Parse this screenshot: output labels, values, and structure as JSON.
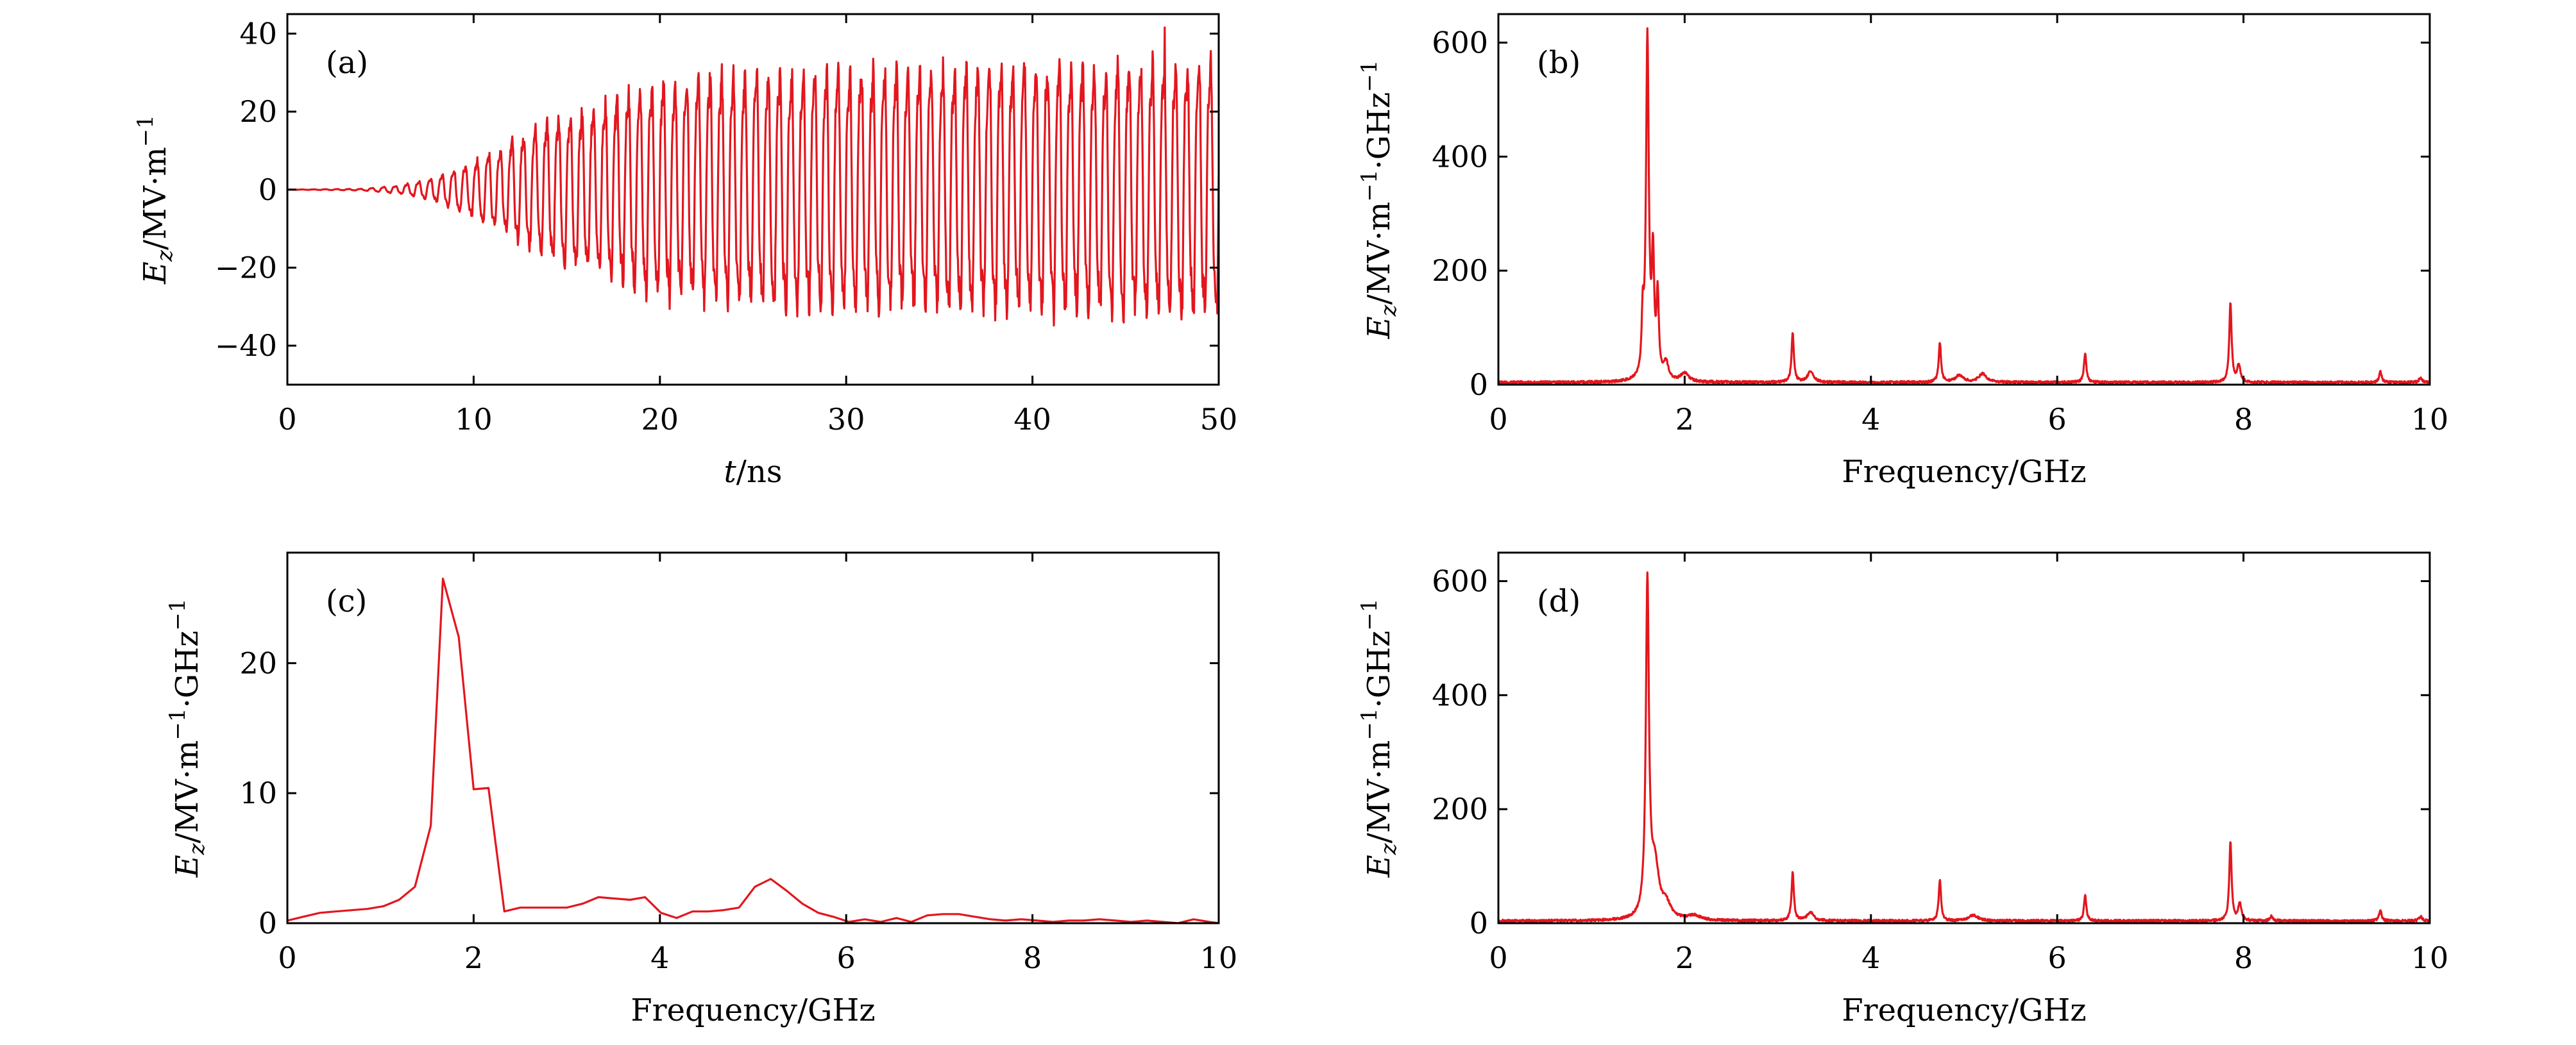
{
  "chart_data": [
    {
      "id": "a",
      "type": "line",
      "panel_label": "(a)",
      "xlabel_var": "t",
      "xlabel_unit": "/ns",
      "ylabel_var": "E",
      "ylabel_sub": "z",
      "ylabel_unit": "/MV·m",
      "ylabel_exp": "−1",
      "xlim": [
        0,
        50
      ],
      "ylim": [
        -50,
        45
      ],
      "xticks": [
        0,
        10,
        20,
        30,
        40,
        50
      ],
      "xtick_labels": [
        "0",
        "10",
        "20",
        "30",
        "40",
        "50"
      ],
      "yticks": [
        -40,
        -20,
        0,
        20,
        40
      ],
      "ytick_labels": [
        "−40",
        "−20",
        "0",
        "20",
        "40"
      ],
      "grid": false,
      "color": "#e3161e",
      "signal": {
        "description_of_envelope": "oscillation at ~1.6 GHz; zero until ~4 ns, grows to ~±30 by ~20 ns, saturates around ±30 with spikes up to ±40",
        "frequency_ghz": 1.6,
        "start_ns": 4,
        "envelope_points": [
          [
            0,
            0
          ],
          [
            4,
            0.2
          ],
          [
            6,
            1
          ],
          [
            8,
            3
          ],
          [
            10,
            7
          ],
          [
            12,
            12
          ],
          [
            14,
            17
          ],
          [
            16,
            20
          ],
          [
            18,
            24
          ],
          [
            20,
            27
          ],
          [
            24,
            29
          ],
          [
            30,
            30
          ],
          [
            40,
            31
          ],
          [
            50,
            32
          ]
        ],
        "sample_step_ns": 0.025
      }
    },
    {
      "id": "b",
      "type": "line",
      "panel_label": "(b)",
      "xlabel": "Frequency/GHz",
      "ylabel_var": "E",
      "ylabel_sub": "z",
      "ylabel_unit": "/MV·m",
      "ylabel_exp": "−1",
      "ylabel_tail": "·GHz",
      "ylabel_tail_exp": "−1",
      "xlim": [
        0,
        10
      ],
      "ylim": [
        0,
        650
      ],
      "xticks": [
        0,
        2,
        4,
        6,
        8,
        10
      ],
      "xtick_labels": [
        "0",
        "2",
        "4",
        "6",
        "8",
        "10"
      ],
      "yticks": [
        0,
        200,
        400,
        600
      ],
      "ytick_labels": [
        "0",
        "200",
        "400",
        "600"
      ],
      "grid": false,
      "color": "#e3161e",
      "peaks": [
        {
          "f": 1.55,
          "a": 95,
          "w": 0.012
        },
        {
          "f": 1.6,
          "a": 600,
          "w": 0.018
        },
        {
          "f": 1.66,
          "a": 200,
          "w": 0.015
        },
        {
          "f": 1.71,
          "a": 140,
          "w": 0.015
        },
        {
          "f": 1.8,
          "a": 30,
          "w": 0.03
        },
        {
          "f": 2.0,
          "a": 15,
          "w": 0.05
        },
        {
          "f": 3.16,
          "a": 85,
          "w": 0.015
        },
        {
          "f": 3.35,
          "a": 18,
          "w": 0.04
        },
        {
          "f": 4.74,
          "a": 70,
          "w": 0.015
        },
        {
          "f": 4.95,
          "a": 12,
          "w": 0.05
        },
        {
          "f": 5.2,
          "a": 15,
          "w": 0.05
        },
        {
          "f": 6.3,
          "a": 50,
          "w": 0.015
        },
        {
          "f": 7.86,
          "a": 140,
          "w": 0.015
        },
        {
          "f": 7.95,
          "a": 30,
          "w": 0.02
        },
        {
          "f": 9.47,
          "a": 20,
          "w": 0.015
        },
        {
          "f": 9.9,
          "a": 8,
          "w": 0.02
        }
      ],
      "baseline": 2
    },
    {
      "id": "c",
      "type": "line",
      "panel_label": "(c)",
      "xlabel": "Frequency/GHz",
      "ylabel_var": "E",
      "ylabel_sub": "z",
      "ylabel_unit": "/MV·m",
      "ylabel_exp": "−1",
      "ylabel_tail": "·GHz",
      "ylabel_tail_exp": "−1",
      "xlim": [
        0,
        10
      ],
      "ylim": [
        0,
        28.5
      ],
      "xticks": [
        0,
        2,
        4,
        6,
        8,
        10
      ],
      "xtick_labels": [
        "0",
        "2",
        "4",
        "6",
        "8",
        "10"
      ],
      "yticks": [
        0,
        10,
        20
      ],
      "ytick_labels": [
        "0",
        "10",
        "20"
      ],
      "grid": false,
      "color": "#e3161e",
      "x": [
        0,
        0.17,
        0.35,
        0.52,
        0.69,
        0.86,
        1.03,
        1.2,
        1.37,
        1.54,
        1.67,
        1.84,
        2.0,
        2.16,
        2.33,
        2.5,
        2.67,
        2.84,
        3.0,
        3.17,
        3.34,
        3.51,
        3.68,
        3.84,
        4.01,
        4.18,
        4.35,
        4.52,
        4.68,
        4.85,
        5.02,
        5.19,
        5.36,
        5.53,
        5.7,
        5.86,
        6.03,
        6.2,
        6.37,
        6.54,
        6.7,
        6.87,
        7.04,
        7.21,
        7.38,
        7.55,
        7.71,
        7.88,
        8.05,
        8.22,
        8.39,
        8.55,
        8.72,
        8.89,
        9.06,
        9.23,
        9.4,
        9.56,
        9.73,
        9.9,
        10
      ],
      "values": [
        0.2,
        0.5,
        0.8,
        0.9,
        1.0,
        1.1,
        1.3,
        1.8,
        2.8,
        7.5,
        26.5,
        22.0,
        10.3,
        10.4,
        0.9,
        1.2,
        1.2,
        1.2,
        1.2,
        1.5,
        2.0,
        1.9,
        1.8,
        2.0,
        0.8,
        0.4,
        0.9,
        0.9,
        1.0,
        1.2,
        2.8,
        3.4,
        2.5,
        1.5,
        0.8,
        0.5,
        0.1,
        0.3,
        0.1,
        0.4,
        0.1,
        0.6,
        0.7,
        0.7,
        0.5,
        0.3,
        0.2,
        0.3,
        0.2,
        0.1,
        0.2,
        0.2,
        0.3,
        0.2,
        0.1,
        0.2,
        0.1,
        0.0,
        0.3,
        0.1,
        0.0
      ]
    },
    {
      "id": "d",
      "type": "line",
      "panel_label": "(d)",
      "xlabel": "Frequency/GHz",
      "ylabel_var": "E",
      "ylabel_sub": "z",
      "ylabel_unit": "/MV·m",
      "ylabel_exp": "−1",
      "ylabel_tail": "·GHz",
      "ylabel_tail_exp": "−1",
      "xlim": [
        0,
        10
      ],
      "ylim": [
        0,
        650
      ],
      "xticks": [
        0,
        2,
        4,
        6,
        8,
        10
      ],
      "xtick_labels": [
        "0",
        "2",
        "4",
        "6",
        "8",
        "10"
      ],
      "yticks": [
        0,
        200,
        400,
        600
      ],
      "ytick_labels": [
        "0",
        "200",
        "400",
        "600"
      ],
      "grid": false,
      "color": "#e3161e",
      "peaks": [
        {
          "f": 1.6,
          "a": 585,
          "w": 0.02
        },
        {
          "f": 1.68,
          "a": 90,
          "w": 0.05
        },
        {
          "f": 1.8,
          "a": 25,
          "w": 0.06
        },
        {
          "f": 2.1,
          "a": 8,
          "w": 0.08
        },
        {
          "f": 3.16,
          "a": 85,
          "w": 0.015
        },
        {
          "f": 3.35,
          "a": 15,
          "w": 0.04
        },
        {
          "f": 4.74,
          "a": 72,
          "w": 0.015
        },
        {
          "f": 5.1,
          "a": 10,
          "w": 0.06
        },
        {
          "f": 6.3,
          "a": 45,
          "w": 0.015
        },
        {
          "f": 7.86,
          "a": 138,
          "w": 0.015
        },
        {
          "f": 7.96,
          "a": 30,
          "w": 0.02
        },
        {
          "f": 8.3,
          "a": 8,
          "w": 0.02
        },
        {
          "f": 9.47,
          "a": 20,
          "w": 0.015
        },
        {
          "f": 9.9,
          "a": 8,
          "w": 0.02
        }
      ],
      "baseline": 2
    }
  ]
}
